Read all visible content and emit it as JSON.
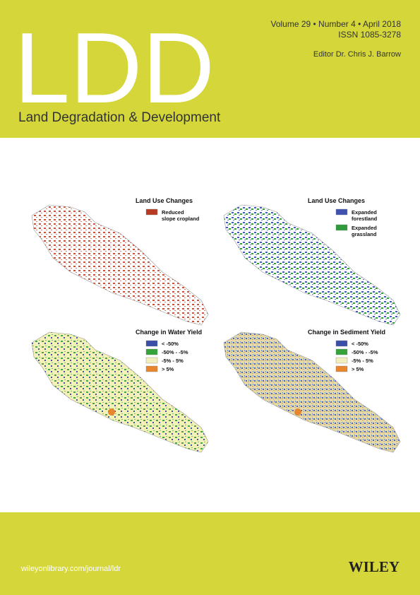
{
  "header": {
    "title": "LDD",
    "subtitle": "Land Degradation & Development",
    "issue": "Volume 29 • Number 4 • April 2018",
    "issn": "ISSN 1085-3278",
    "editor": "Editor Dr. Chris J. Barrow"
  },
  "maps": [
    {
      "legend_title": "Land Use Changes",
      "items": [
        {
          "lines": [
            "Reduced",
            "slope cropland"
          ]
        }
      ]
    },
    {
      "legend_title": "Land Use Changes",
      "items": [
        {
          "lines": [
            "Expanded",
            "forestland"
          ]
        },
        {
          "lines": [
            "Expanded",
            "grassland"
          ]
        }
      ]
    },
    {
      "legend_title": "Change in Water Yield",
      "items": [
        {
          "lines": [
            "< -50%"
          ]
        },
        {
          "lines": [
            "-50% - -5%"
          ]
        },
        {
          "lines": [
            "-5% - 5%"
          ]
        },
        {
          "lines": [
            "> 5%"
          ]
        }
      ]
    },
    {
      "legend_title": "Change in Sediment Yield",
      "items": [
        {
          "lines": [
            "< -50%"
          ]
        },
        {
          "lines": [
            "-50% - -5%"
          ]
        },
        {
          "lines": [
            "-5% - 5%"
          ]
        },
        {
          "lines": [
            "> 5%"
          ]
        }
      ]
    }
  ],
  "footer": {
    "url": "wileyonlibrary.com/journal/ldr",
    "publisher": "WILEY"
  }
}
